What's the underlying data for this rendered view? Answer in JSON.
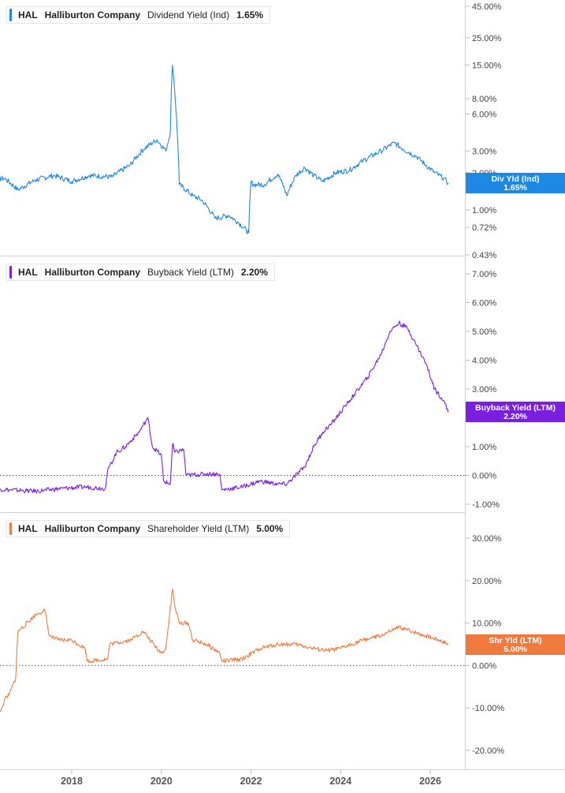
{
  "colors": {
    "panel0": "#1e88e5",
    "panel1": "#7a1fe0",
    "panel2": "#f07a3e"
  },
  "panels": [
    {
      "legend": {
        "ticker": "HAL",
        "company": "Halliburton Company",
        "metric": "Dividend Yield (Ind)",
        "value": "1.65%"
      },
      "badge": {
        "line1": "Div Yld (Ind)",
        "line2": "1.65%"
      }
    },
    {
      "legend": {
        "ticker": "HAL",
        "company": "Halliburton Company",
        "metric": "Buyback Yield (LTM)",
        "value": "2.20%"
      },
      "badge": {
        "line1": "Buyback Yield (LTM)",
        "line2": "2.20%"
      }
    },
    {
      "legend": {
        "ticker": "HAL",
        "company": "Halliburton Company",
        "metric": "Shareholder Yield (LTM)",
        "value": "5.00%"
      },
      "badge": {
        "line1": "Shr Yld (LTM)",
        "line2": "5.00%"
      }
    }
  ],
  "chart_data": [
    {
      "type": "line",
      "title": "HAL Halliburton Company Dividend Yield (Ind) 1.65%",
      "scale": "log",
      "yticks": [
        45,
        25,
        15,
        8,
        6,
        3,
        2,
        1,
        0.72,
        0.43
      ],
      "yticklabels": [
        "45.00%",
        "25.00%",
        "15.00%",
        "8.00%",
        "6.00%",
        "3.00%",
        "2.00%",
        "1.00%",
        "0.72%",
        "0.43%"
      ],
      "xlim": [
        2016.0,
        2026.6
      ],
      "ylim": [
        0.43,
        45
      ],
      "series": [
        {
          "name": "Dividend Yield (Ind)",
          "x": [
            2016.0,
            2016.5,
            2016.8,
            2017.2,
            2017.6,
            2018.0,
            2018.4,
            2018.9,
            2019.3,
            2019.6,
            2019.9,
            2020.1,
            2020.2,
            2020.25,
            2020.3,
            2020.35,
            2020.4,
            2020.7,
            2020.9,
            2021.2,
            2021.5,
            2021.7,
            2021.95,
            2022.0,
            2022.05,
            2022.3,
            2022.6,
            2022.8,
            2023.0,
            2023.2,
            2023.4,
            2023.6,
            2023.9,
            2024.2,
            2024.5,
            2024.9,
            2025.2,
            2025.4,
            2025.7,
            2025.9,
            2026.1,
            2026.3,
            2026.4
          ],
          "y": [
            1.7,
            1.8,
            1.45,
            1.75,
            1.9,
            1.7,
            1.9,
            1.85,
            2.3,
            3.1,
            3.7,
            3.0,
            4.2,
            15.0,
            9.0,
            4.5,
            1.6,
            1.3,
            1.2,
            0.85,
            0.9,
            0.8,
            0.65,
            1.7,
            1.6,
            1.6,
            1.95,
            1.3,
            1.9,
            2.2,
            1.9,
            1.7,
            2.0,
            2.1,
            2.5,
            3.0,
            3.5,
            3.1,
            2.7,
            2.3,
            2.0,
            1.8,
            1.65
          ]
        }
      ]
    },
    {
      "type": "line",
      "title": "HAL Halliburton Company Buyback Yield (LTM) 2.20%",
      "yticks": [
        7,
        6,
        5,
        4,
        3,
        1,
        0,
        -1
      ],
      "yticklabels": [
        "7.00%",
        "6.00%",
        "5.00%",
        "4.00%",
        "3.00%",
        "1.00%",
        "0.00%",
        "-1.00%"
      ],
      "xlim": [
        2016.0,
        2026.6
      ],
      "ylim": [
        -1.2,
        7.2
      ],
      "series": [
        {
          "name": "Buyback Yield (LTM)",
          "x": [
            2016.0,
            2016.6,
            2017.2,
            2017.8,
            2018.3,
            2018.75,
            2018.8,
            2019.0,
            2019.2,
            2019.5,
            2019.7,
            2019.8,
            2020.0,
            2020.05,
            2020.2,
            2020.25,
            2020.3,
            2020.5,
            2020.55,
            2021.0,
            2021.3,
            2021.35,
            2021.8,
            2022.2,
            2022.6,
            2022.8,
            2023.2,
            2023.4,
            2023.6,
            2023.8,
            2024.1,
            2024.3,
            2024.6,
            2024.9,
            2025.1,
            2025.3,
            2025.5,
            2025.7,
            2025.9,
            2026.1,
            2026.3,
            2026.4
          ],
          "y": [
            -0.45,
            -0.5,
            -0.55,
            -0.45,
            -0.4,
            -0.45,
            0.15,
            0.8,
            1.0,
            1.5,
            2.0,
            1.0,
            0.7,
            -0.2,
            -0.3,
            1.1,
            0.8,
            0.9,
            0.0,
            0.05,
            0.05,
            -0.5,
            -0.4,
            -0.2,
            -0.3,
            -0.3,
            0.3,
            1.0,
            1.5,
            1.8,
            2.4,
            2.8,
            3.4,
            4.2,
            5.0,
            5.3,
            5.1,
            4.5,
            3.9,
            3.0,
            2.6,
            2.2
          ]
        }
      ]
    },
    {
      "type": "line",
      "title": "HAL Halliburton Company Shareholder Yield (LTM) 5.00%",
      "yticks": [
        30,
        20,
        10,
        0,
        -10,
        -20
      ],
      "yticklabels": [
        "30.00%",
        "20.00%",
        "10.00%",
        "0.00%",
        "-10.00%",
        "-20.00%"
      ],
      "xlim": [
        2016.0,
        2026.6
      ],
      "ylim": [
        -22,
        32
      ],
      "series": [
        {
          "name": "Shareholder Yield (LTM)",
          "x": [
            2016.0,
            2016.2,
            2016.45,
            2016.5,
            2016.6,
            2016.75,
            2016.8,
            2017.2,
            2017.4,
            2017.5,
            2017.7,
            2018.0,
            2018.3,
            2018.35,
            2018.8,
            2018.85,
            2019.3,
            2019.6,
            2019.9,
            2020.0,
            2020.1,
            2020.25,
            2020.3,
            2020.4,
            2020.6,
            2020.7,
            2021.0,
            2021.3,
            2021.35,
            2021.8,
            2022.2,
            2022.6,
            2023.0,
            2023.4,
            2023.7,
            2024.0,
            2024.5,
            2024.9,
            2025.1,
            2025.3,
            2025.6,
            2025.9,
            2026.2,
            2026.4
          ],
          "y": [
            -18,
            -14,
            -10,
            -8,
            -7,
            -3,
            8,
            12,
            13,
            7,
            6,
            6,
            4,
            1,
            1.5,
            5,
            6,
            8,
            4,
            3,
            4,
            18,
            14,
            10,
            10,
            6,
            5,
            3,
            1,
            1.5,
            4,
            5,
            5,
            4,
            3.5,
            4,
            6,
            7,
            8,
            9,
            8,
            7,
            6,
            5
          ]
        }
      ]
    }
  ],
  "xaxis": {
    "ticks": [
      2018,
      2020,
      2022,
      2024,
      2026
    ],
    "labels": [
      "2018",
      "2020",
      "2022",
      "2024",
      "2026"
    ]
  }
}
